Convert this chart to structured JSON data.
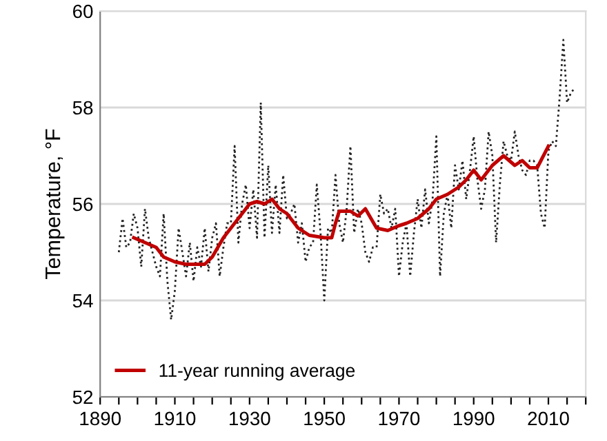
{
  "chart_data": {
    "type": "line",
    "ylabel": "Temperature, °F",
    "xlim": [
      1890,
      2020
    ],
    "ylim": [
      52,
      60
    ],
    "xticks": [
      1890,
      {
        "value": 1895,
        "label": null
      },
      {
        "value": 1900,
        "label": null
      },
      {
        "value": 1905,
        "label": null
      },
      1910,
      {
        "value": 1915,
        "label": null
      },
      {
        "value": 1920,
        "label": null
      },
      {
        "value": 1925,
        "label": null
      },
      1930,
      {
        "value": 1935,
        "label": null
      },
      {
        "value": 1940,
        "label": null
      },
      {
        "value": 1945,
        "label": null
      },
      1950,
      {
        "value": 1955,
        "label": null
      },
      {
        "value": 1960,
        "label": null
      },
      {
        "value": 1965,
        "label": null
      },
      1970,
      {
        "value": 1975,
        "label": null
      },
      {
        "value": 1980,
        "label": null
      },
      {
        "value": 1985,
        "label": null
      },
      1990,
      {
        "value": 1995,
        "label": null
      },
      {
        "value": 2000,
        "label": null
      },
      {
        "value": 2005,
        "label": null
      },
      2010,
      {
        "value": 2015,
        "label": null
      },
      {
        "value": 2020,
        "label": null
      }
    ],
    "yticks": [
      52,
      54,
      56,
      58,
      60
    ],
    "grid": "y",
    "legend": "bottom left",
    "series": [
      {
        "color": "#222222",
        "line_style": "dotted",
        "x": [
          1895,
          1896,
          1897,
          1898,
          1899,
          1900,
          1901,
          1902,
          1903,
          1904,
          1905,
          1906,
          1907,
          1908,
          1909,
          1910,
          1911,
          1912,
          1913,
          1914,
          1915,
          1916,
          1917,
          1918,
          1919,
          1920,
          1921,
          1922,
          1923,
          1924,
          1925,
          1926,
          1927,
          1928,
          1929,
          1930,
          1931,
          1932,
          1933,
          1934,
          1935,
          1936,
          1937,
          1938,
          1939,
          1940,
          1941,
          1942,
          1943,
          1944,
          1945,
          1946,
          1947,
          1948,
          1949,
          1950,
          1951,
          1952,
          1953,
          1954,
          1955,
          1956,
          1957,
          1958,
          1959,
          1960,
          1961,
          1962,
          1963,
          1964,
          1965,
          1966,
          1967,
          1968,
          1969,
          1970,
          1971,
          1972,
          1973,
          1974,
          1975,
          1976,
          1977,
          1978,
          1979,
          1980,
          1981,
          1982,
          1983,
          1984,
          1985,
          1986,
          1987,
          1988,
          1989,
          1990,
          1991,
          1992,
          1993,
          1994,
          1995,
          1996,
          1997,
          1998,
          1999,
          2000,
          2001,
          2002,
          2003,
          2004,
          2005,
          2006,
          2007,
          2008,
          2009,
          2010,
          2011,
          2012,
          2013,
          2014,
          2015,
          2016,
          2017
        ],
        "values": [
          55.0,
          55.7,
          55.1,
          55.2,
          55.8,
          55.5,
          54.7,
          55.9,
          55.3,
          55.0,
          54.7,
          54.5,
          55.8,
          54.4,
          53.6,
          54.2,
          55.5,
          55.0,
          54.5,
          55.2,
          54.4,
          55.1,
          54.7,
          55.5,
          54.6,
          55.3,
          55.6,
          54.5,
          55.1,
          55.6,
          55.6,
          57.2,
          55.2,
          56.0,
          56.4,
          55.5,
          56.3,
          55.3,
          58.1,
          55.3,
          56.8,
          55.4,
          56.4,
          55.4,
          56.6,
          55.7,
          55.8,
          56.0,
          55.2,
          55.6,
          54.8,
          55.1,
          55.2,
          56.4,
          55.4,
          54.0,
          55.5,
          55.4,
          56.6,
          55.6,
          55.2,
          55.9,
          57.2,
          55.4,
          55.9,
          55.6,
          55.0,
          54.8,
          55.1,
          55.1,
          56.2,
          55.8,
          55.9,
          55.5,
          55.9,
          54.5,
          55.2,
          55.6,
          54.5,
          55.4,
          56.1,
          55.5,
          56.3,
          55.6,
          56.1,
          57.4,
          54.5,
          55.8,
          56.2,
          55.5,
          56.8,
          56.3,
          56.9,
          56.1,
          56.7,
          57.4,
          56.5,
          55.9,
          56.3,
          57.5,
          57.0,
          55.2,
          56.4,
          57.3,
          57.0,
          56.9,
          57.5,
          57.0,
          56.7,
          56.6,
          56.9,
          56.9,
          56.8,
          55.8,
          55.5,
          57.1,
          57.3,
          57.2,
          58.2,
          59.4,
          58.1,
          58.3,
          58.4
        ]
      },
      {
        "name": "11-year running average",
        "color": "#c00000",
        "line_style": "solid",
        "x": [
          1899,
          1902,
          1905,
          1907,
          1910,
          1913,
          1918,
          1920,
          1923,
          1927,
          1930,
          1932,
          1934,
          1936,
          1938,
          1940,
          1943,
          1946,
          1950,
          1952,
          1953,
          1954,
          1957,
          1959,
          1961,
          1964,
          1967,
          1970,
          1972,
          1975,
          1978,
          1980,
          1983,
          1986,
          1988,
          1990,
          1992,
          1995,
          1998,
          2001,
          2003,
          2005,
          2007,
          2010
        ],
        "values": [
          55.3,
          55.2,
          55.1,
          54.9,
          54.8,
          54.75,
          54.75,
          54.9,
          55.3,
          55.7,
          56.0,
          56.05,
          56.0,
          56.1,
          55.9,
          55.8,
          55.5,
          55.35,
          55.3,
          55.3,
          55.6,
          55.85,
          55.85,
          55.75,
          55.9,
          55.5,
          55.45,
          55.55,
          55.6,
          55.7,
          55.9,
          56.1,
          56.2,
          56.35,
          56.5,
          56.7,
          56.5,
          56.8,
          57.0,
          56.8,
          56.9,
          56.75,
          56.75,
          57.2
        ]
      }
    ]
  }
}
